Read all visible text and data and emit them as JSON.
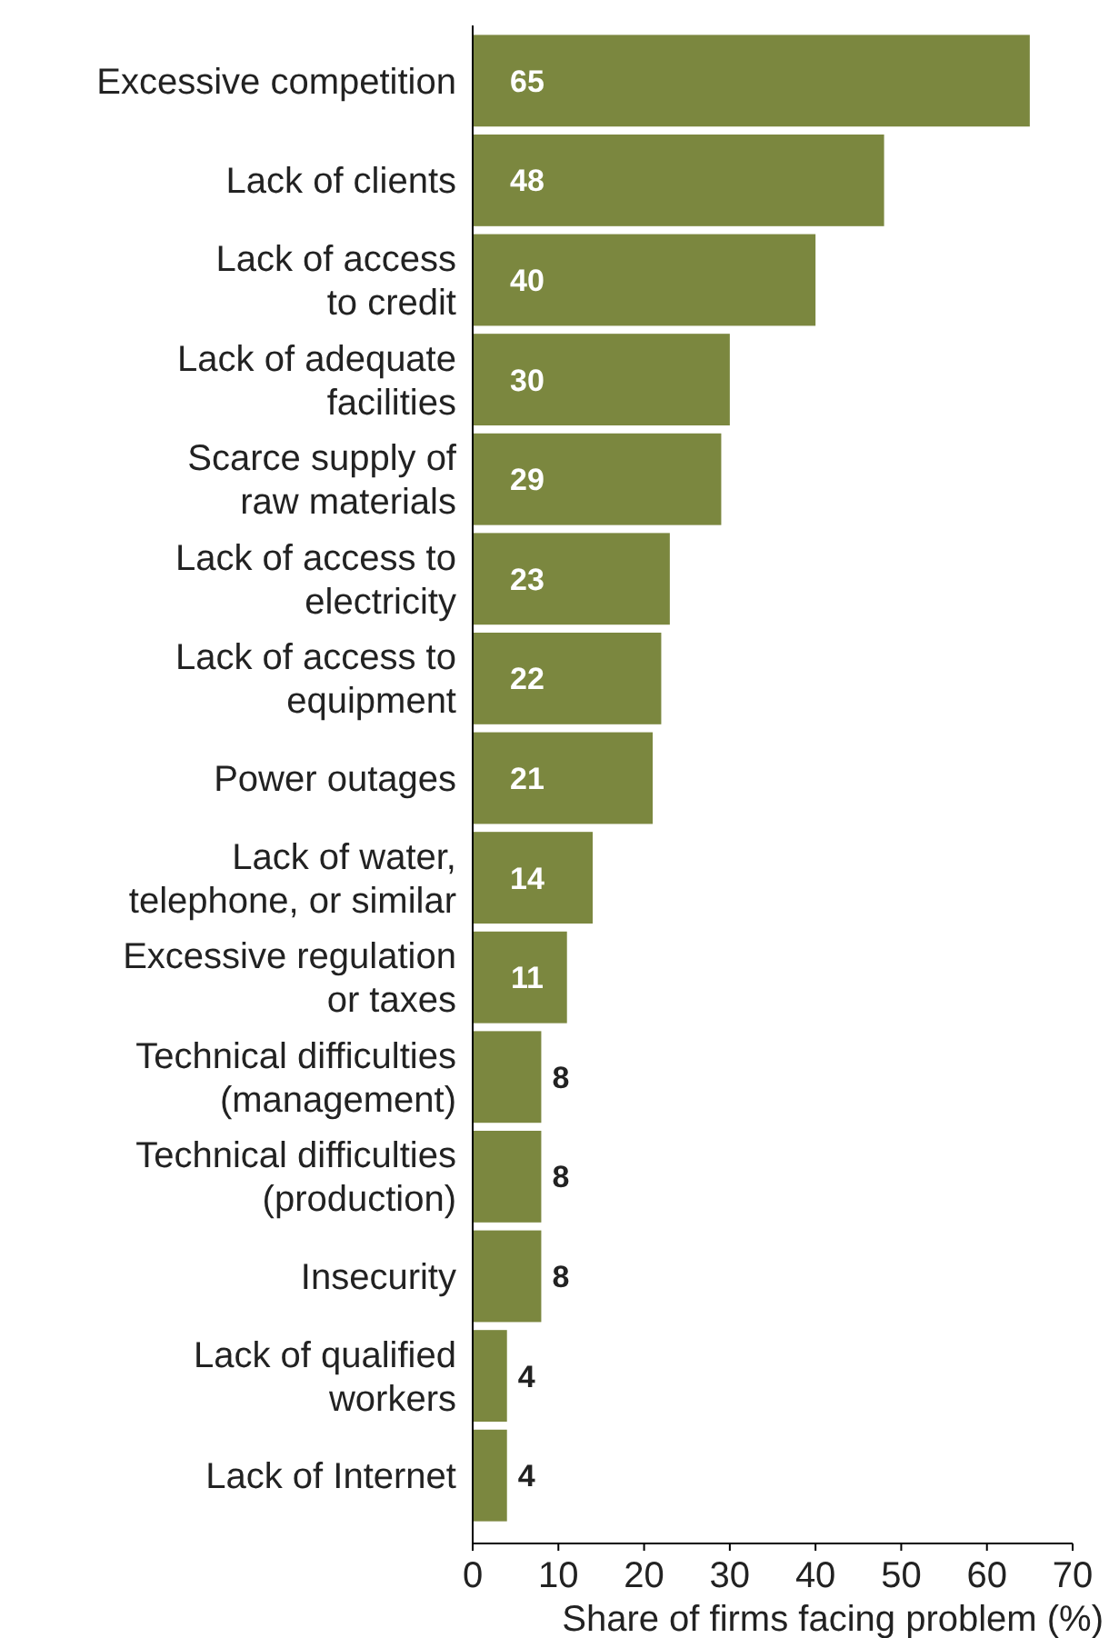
{
  "chart_data": {
    "type": "bar",
    "orientation": "horizontal",
    "xlabel": "Share of firms facing problem (%)",
    "categories": [
      "Excessive competition",
      "Lack of clients",
      "Lack of access\nto credit",
      "Lack of adequate\nfacilities",
      "Scarce supply of\nraw materials",
      "Lack of access to\nelectricity",
      "Lack of access to\nequipment",
      "Power outages",
      "Lack of water,\ntelephone, or similar",
      "Excessive regulation\nor taxes",
      "Technical difficulties\n(management)",
      "Technical difficulties\n(production)",
      "Insecurity",
      "Lack of qualified\nworkers",
      "Lack of Internet"
    ],
    "values": [
      65,
      48,
      40,
      30,
      29,
      23,
      22,
      21,
      14,
      11,
      8,
      8,
      8,
      4,
      4
    ],
    "color": "#7b873f",
    "data_labels": true,
    "grid": false,
    "xlim": [
      0,
      70
    ],
    "xticks": [
      0,
      10,
      20,
      30,
      40,
      50,
      60,
      70
    ]
  }
}
